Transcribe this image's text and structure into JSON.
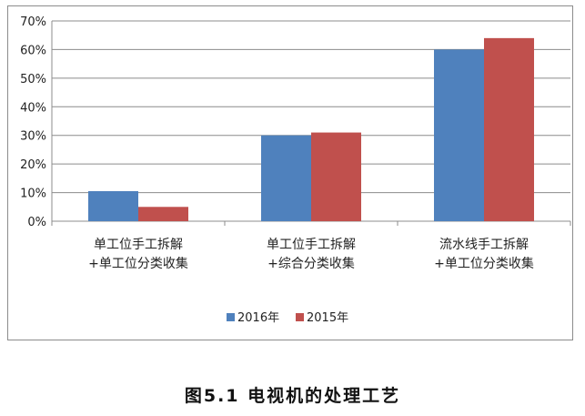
{
  "chart_data": {
    "type": "bar",
    "categories": [
      [
        "单工位手工拆解",
        "+单工位分类收集"
      ],
      [
        "单工位手工拆解",
        "+综合分类收集"
      ],
      [
        "流水线手工拆解",
        "+单工位分类收集"
      ]
    ],
    "series": [
      {
        "name": "2016年",
        "values": [
          10.5,
          30,
          60
        ],
        "color": "#4f81bd"
      },
      {
        "name": "2015年",
        "values": [
          5,
          31,
          64
        ],
        "color": "#c0504d"
      }
    ],
    "ylim": [
      0,
      70
    ],
    "yticks": [
      "0%",
      "10%",
      "20%",
      "30%",
      "40%",
      "50%",
      "60%",
      "70%"
    ],
    "grid": true,
    "legend": "bottom"
  },
  "caption": "图5.1 电视机的处理工艺"
}
